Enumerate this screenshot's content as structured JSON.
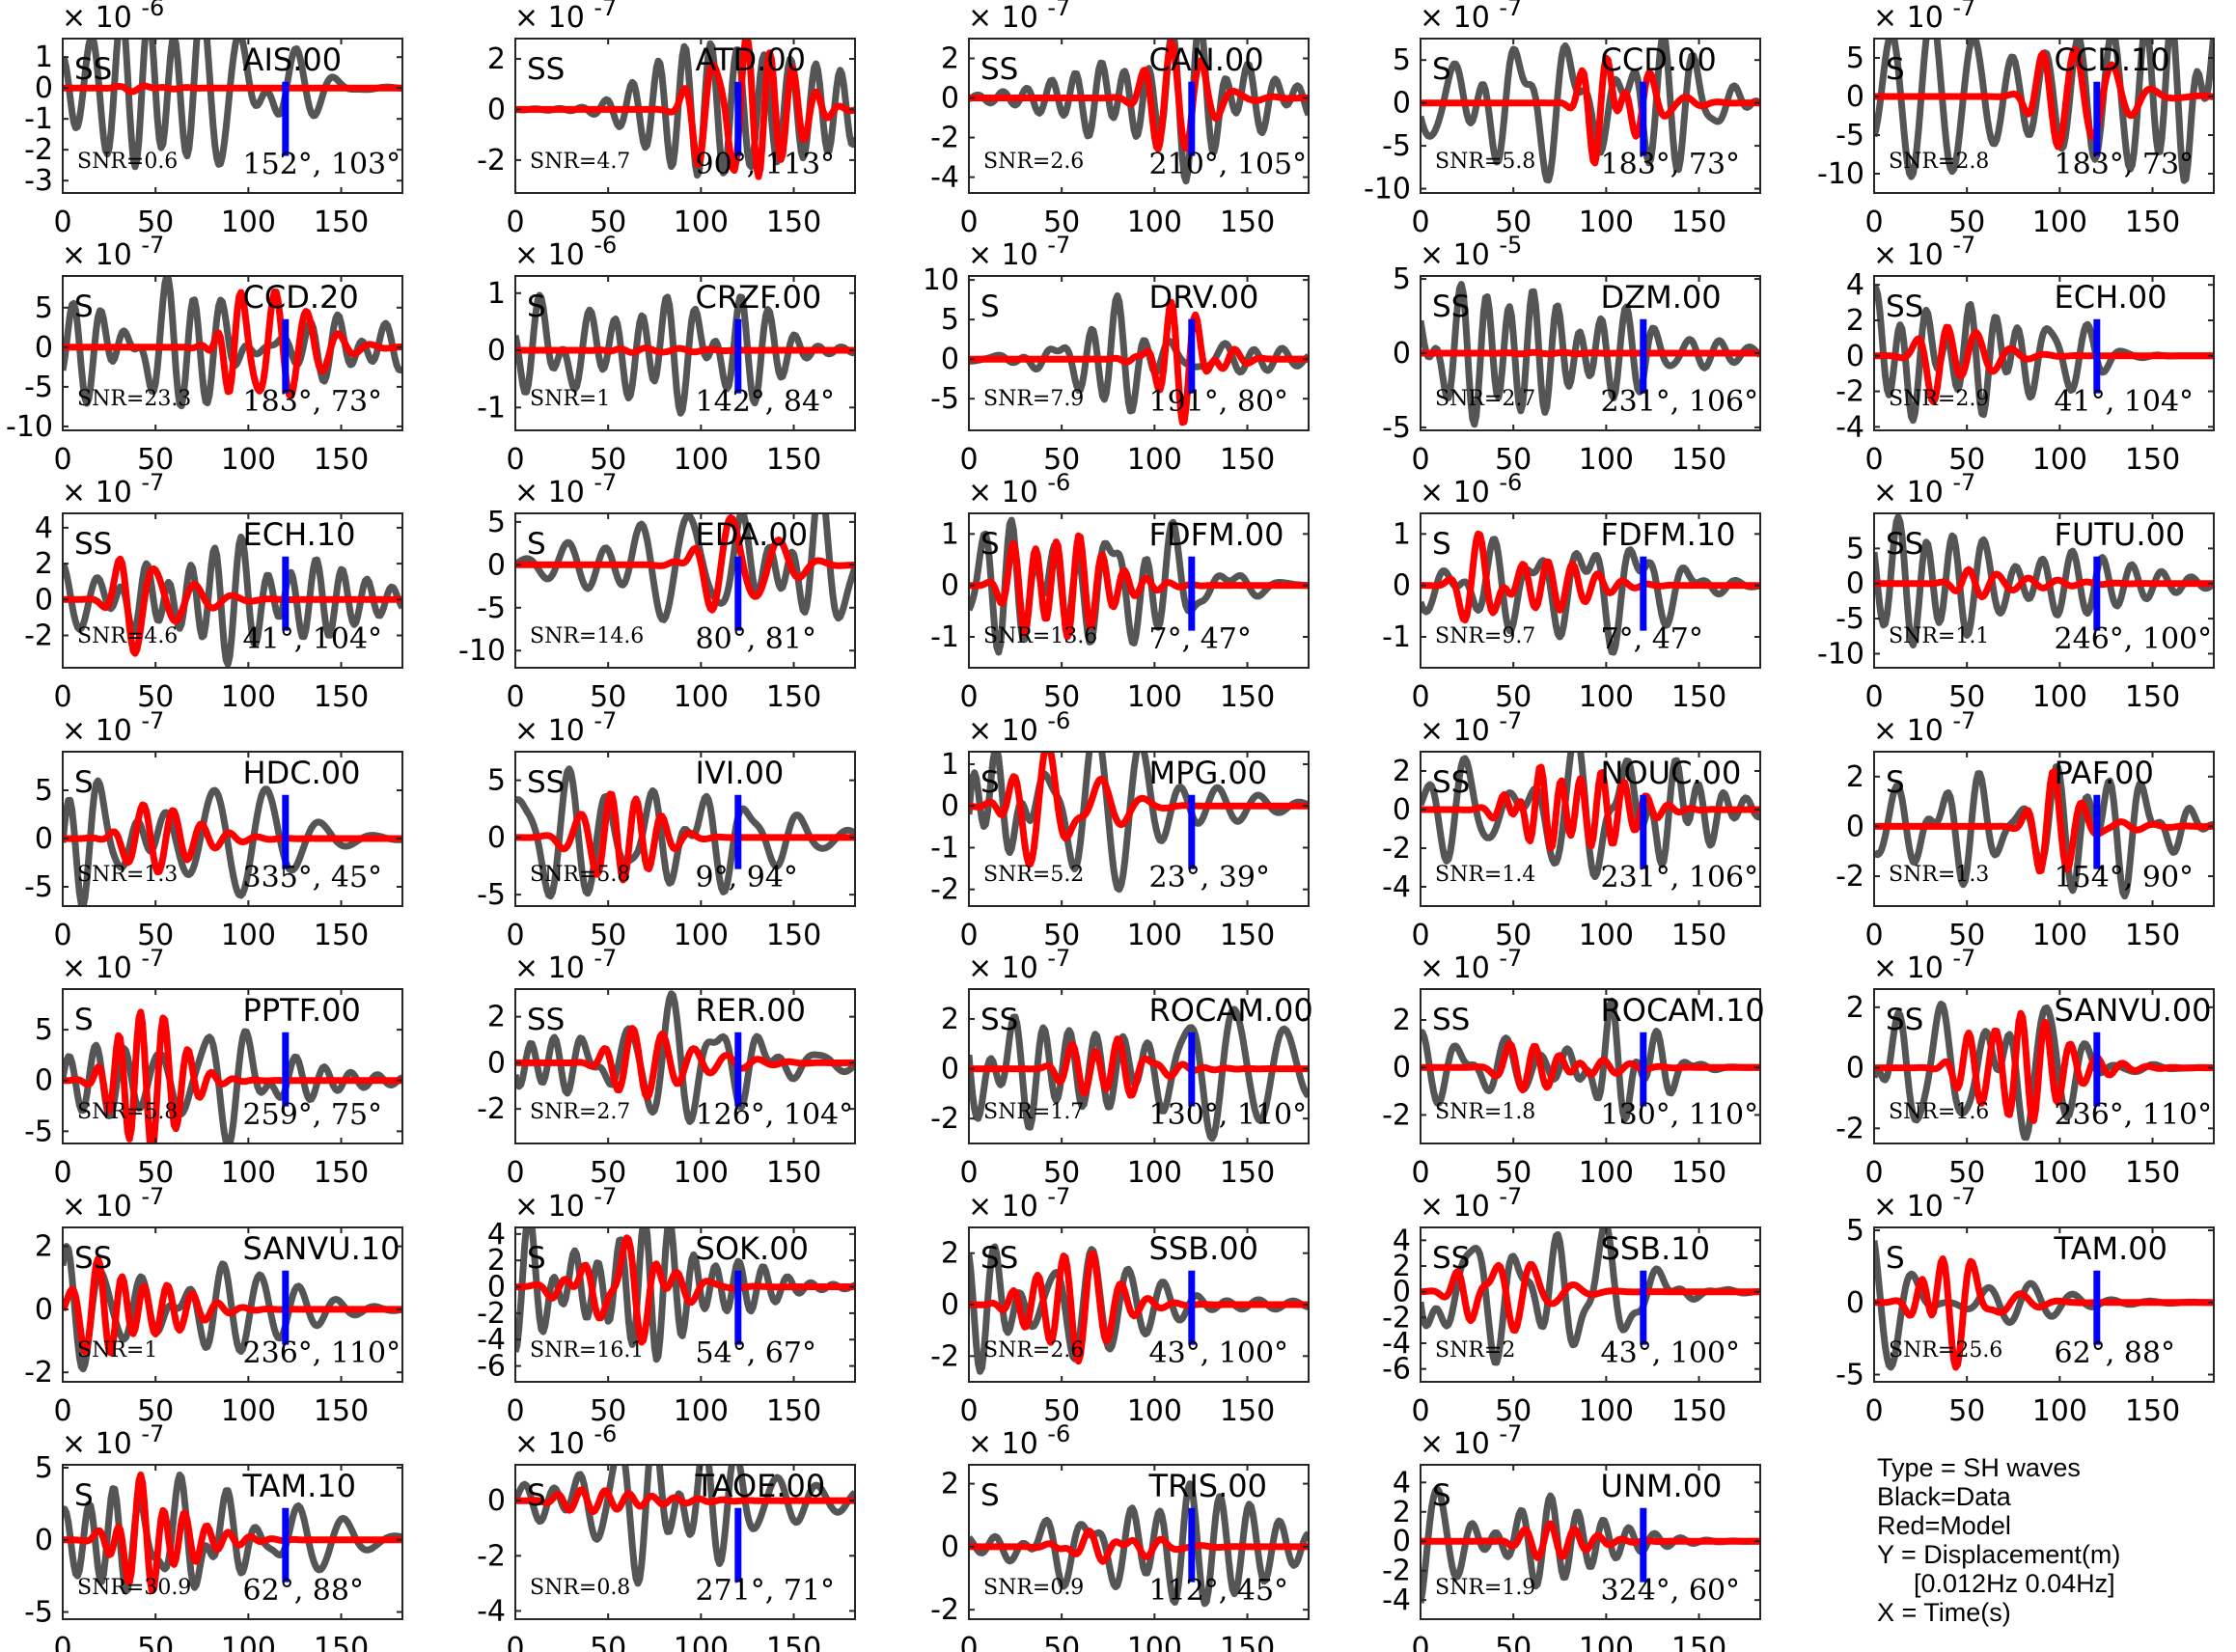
{
  "chart_data": {
    "type": "line",
    "x_ticks": [
      0,
      50,
      100,
      150
    ],
    "xlim": [
      0,
      183
    ],
    "marker_time": 120,
    "series_colors": {
      "data": "#555555",
      "model": "#ff0000",
      "marker": "#0000ff"
    },
    "legend_lines": [
      "Type = SH waves",
      "Black=Data",
      "Red=Model",
      "Y = Displacement(m)",
      "[0.012Hz 0.04Hz]",
      "X = Time(s)"
    ],
    "panels": [
      {
        "station": "AIS.00",
        "type": "SS",
        "snr": "SNR=0.6",
        "az": "152°, 103°",
        "exp_base": "× 10",
        "exp_pow": "-6",
        "ylim": [
          -3.4,
          1.6
        ],
        "yticks": [
          "1",
          "0",
          "-1",
          "-2",
          "-3"
        ],
        "ytick_vals": [
          1,
          0,
          -1,
          -2,
          -3
        ],
        "seed": 11,
        "amp_data": 2.8,
        "amp_model": 0.12,
        "pick": 50
      },
      {
        "station": "ATD.00",
        "type": "SS",
        "snr": "SNR=4.7",
        "az": "90°, 113°",
        "exp_base": "× 10",
        "exp_pow": "-7",
        "ylim": [
          -3.3,
          2.8
        ],
        "yticks": [
          "2",
          "0",
          "-2"
        ],
        "ytick_vals": [
          2,
          0,
          -2
        ],
        "seed": 12,
        "amp_data": 2.6,
        "amp_model": 2.9,
        "pick": 110
      },
      {
        "station": "CAN.00",
        "type": "SS",
        "snr": "SNR=2.6",
        "az": "210°, 105°",
        "exp_base": "× 10",
        "exp_pow": "-7",
        "ylim": [
          -4.8,
          3.0
        ],
        "yticks": [
          "2",
          "0",
          "-2",
          "-4"
        ],
        "ytick_vals": [
          2,
          0,
          -2,
          -4
        ],
        "seed": 13,
        "amp_data": 4.2,
        "amp_model": 2.8,
        "pick": 110
      },
      {
        "station": "CCD.00",
        "type": "S",
        "snr": "SNR=5.8",
        "az": "183°, 73°",
        "exp_base": "× 10",
        "exp_pow": "-7",
        "ylim": [
          -10.5,
          7.5
        ],
        "yticks": [
          "5",
          "0",
          "-5",
          "-10"
        ],
        "ytick_vals": [
          5,
          0,
          -5,
          -10
        ],
        "seed": 14,
        "amp_data": 9.0,
        "amp_model": 7.0,
        "pick": 100
      },
      {
        "station": "CCD.10",
        "type": "S",
        "snr": "SNR=2.8",
        "az": "183°, 73°",
        "exp_base": "× 10",
        "exp_pow": "-7",
        "ylim": [
          -12.5,
          7.5
        ],
        "yticks": [
          "5",
          "0",
          "-5",
          "-10"
        ],
        "ytick_vals": [
          5,
          0,
          -5,
          -10
        ],
        "seed": 15,
        "amp_data": 11.0,
        "amp_model": 6.5,
        "pick": 100
      },
      {
        "station": "CCD.20",
        "type": "S",
        "snr": "SNR=23.3",
        "az": "183°, 73°",
        "exp_base": "× 10",
        "exp_pow": "-7",
        "ylim": [
          -10.5,
          9.0
        ],
        "yticks": [
          "5",
          "0",
          "-5",
          "-10"
        ],
        "ytick_vals": [
          5,
          0,
          -5,
          -10
        ],
        "seed": 16,
        "amp_data": 9.0,
        "amp_model": 7.0,
        "pick": 100
      },
      {
        "station": "CRZF.00",
        "type": "S",
        "snr": "SNR=1",
        "az": "142°, 84°",
        "exp_base": "× 10",
        "exp_pow": "-6",
        "ylim": [
          -1.4,
          1.3
        ],
        "yticks": [
          "1",
          "0",
          "-1"
        ],
        "ytick_vals": [
          1,
          0,
          -1
        ],
        "seed": 17,
        "amp_data": 1.1,
        "amp_model": 0.04,
        "pick": 60
      },
      {
        "station": "DRV.00",
        "type": "S",
        "snr": "SNR=7.9",
        "az": "191°, 80°",
        "exp_base": "× 10",
        "exp_pow": "-7",
        "ylim": [
          -9.0,
          10.5
        ],
        "yticks": [
          "10",
          "5",
          "0",
          "-5"
        ],
        "ytick_vals": [
          10,
          5,
          0,
          -5
        ],
        "seed": 18,
        "amp_data": 8.0,
        "amp_model": 8.0,
        "pick": 100
      },
      {
        "station": "DZM.00",
        "type": "SS",
        "snr": "SNR=2.7",
        "az": "231°, 106°",
        "exp_base": "× 10",
        "exp_pow": "-5",
        "ylim": [
          -5.2,
          5.2
        ],
        "yticks": [
          "5",
          "0",
          "-5"
        ],
        "ytick_vals": [
          5,
          0,
          -5
        ],
        "seed": 19,
        "amp_data": 4.8,
        "amp_model": 0.05,
        "pick": 60
      },
      {
        "station": "ECH.00",
        "type": "SS",
        "snr": "SNR=2.9",
        "az": "41°, 104°",
        "exp_base": "× 10",
        "exp_pow": "-7",
        "ylim": [
          -4.2,
          4.5
        ],
        "yticks": [
          "4",
          "2",
          "0",
          "-2",
          "-4"
        ],
        "ytick_vals": [
          4,
          2,
          0,
          -2,
          -4
        ],
        "seed": 20,
        "amp_data": 3.8,
        "amp_model": 2.6,
        "pick": 45
      },
      {
        "station": "ECH.10",
        "type": "SS",
        "snr": "SNR=4.6",
        "az": "41°, 104°",
        "exp_base": "× 10",
        "exp_pow": "-7",
        "ylim": [
          -3.8,
          4.8
        ],
        "yticks": [
          "4",
          "2",
          "0",
          "-2"
        ],
        "ytick_vals": [
          4,
          2,
          0,
          -2
        ],
        "seed": 21,
        "amp_data": 3.6,
        "amp_model": 3.0,
        "pick": 45
      },
      {
        "station": "EDA.00",
        "type": "S",
        "snr": "SNR=14.6",
        "az": "80°, 81°",
        "exp_base": "× 10",
        "exp_pow": "-7",
        "ylim": [
          -12.0,
          6.0
        ],
        "yticks": [
          "5",
          "0",
          "-5",
          "-10"
        ],
        "ytick_vals": [
          5,
          0,
          -5,
          -10
        ],
        "seed": 22,
        "amp_data": 10.0,
        "amp_model": 5.5,
        "pick": 105
      },
      {
        "station": "FDFM.00",
        "type": "S",
        "snr": "SNR=13.6",
        "az": "7°, 47°",
        "exp_base": "× 10",
        "exp_pow": "-6",
        "ylim": [
          -1.6,
          1.4
        ],
        "yticks": [
          "1",
          "0",
          "-1"
        ],
        "ytick_vals": [
          1,
          0,
          -1
        ],
        "seed": 23,
        "amp_data": 1.3,
        "amp_model": 1.0,
        "pick": 35
      },
      {
        "station": "FDFM.10",
        "type": "S",
        "snr": "SNR=9.7",
        "az": "7°, 47°",
        "exp_base": "× 10",
        "exp_pow": "-6",
        "ylim": [
          -1.6,
          1.4
        ],
        "yticks": [
          "1",
          "0",
          "-1"
        ],
        "ytick_vals": [
          1,
          0,
          -1
        ],
        "seed": 24,
        "amp_data": 1.3,
        "amp_model": 1.0,
        "pick": 35
      },
      {
        "station": "FUTU.00",
        "type": "SS",
        "snr": "SNR=1.1",
        "az": "246°, 100°",
        "exp_base": "× 10",
        "exp_pow": "-7",
        "ylim": [
          -12.0,
          10.0
        ],
        "yticks": [
          "5",
          "0",
          "-5",
          "-10"
        ],
        "ytick_vals": [
          5,
          0,
          -5,
          -10
        ],
        "seed": 25,
        "amp_data": 9.5,
        "amp_model": 2.0,
        "pick": 60
      },
      {
        "station": "HDC.00",
        "type": "S",
        "snr": "SNR=1.3",
        "az": "335°, 45°",
        "exp_base": "× 10",
        "exp_pow": "-7",
        "ylim": [
          -7.0,
          9.0
        ],
        "yticks": [
          "5",
          "0",
          "-5"
        ],
        "ytick_vals": [
          5,
          0,
          -5
        ],
        "seed": 26,
        "amp_data": 7.0,
        "amp_model": 3.5,
        "pick": 40
      },
      {
        "station": "IVI.00",
        "type": "SS",
        "snr": "SNR=5.8",
        "az": "9°, 94°",
        "exp_base": "× 10",
        "exp_pow": "-7",
        "ylim": [
          -6.0,
          7.5
        ],
        "yticks": [
          "5",
          "0",
          "-5"
        ],
        "ytick_vals": [
          5,
          0,
          -5
        ],
        "seed": 27,
        "amp_data": 6.0,
        "amp_model": 3.8,
        "pick": 35
      },
      {
        "station": "MPG.00",
        "type": "S",
        "snr": "SNR=5.2",
        "az": "23°, 39°",
        "exp_base": "× 10",
        "exp_pow": "-6",
        "ylim": [
          -2.4,
          1.3
        ],
        "yticks": [
          "1",
          "0",
          "-1",
          "-2"
        ],
        "ytick_vals": [
          1,
          0,
          -1,
          -2
        ],
        "seed": 28,
        "amp_data": 2.0,
        "amp_model": 1.5,
        "pick": 35
      },
      {
        "station": "NOUC.00",
        "type": "SS",
        "snr": "SNR=1.4",
        "az": "231°, 106°",
        "exp_base": "× 10",
        "exp_pow": "-7",
        "ylim": [
          -5.0,
          3.0
        ],
        "yticks": [
          "2",
          "0",
          "-2",
          "-4"
        ],
        "ytick_vals": [
          2,
          0,
          -2,
          -4
        ],
        "seed": 29,
        "amp_data": 4.0,
        "amp_model": 2.2,
        "pick": 60
      },
      {
        "station": "PAF.00",
        "type": "S",
        "snr": "SNR=1.3",
        "az": "154°, 90°",
        "exp_base": "× 10",
        "exp_pow": "-7",
        "ylim": [
          -3.2,
          3.0
        ],
        "yticks": [
          "2",
          "0",
          "-2"
        ],
        "ytick_vals": [
          2,
          0,
          -2
        ],
        "seed": 30,
        "amp_data": 2.8,
        "amp_model": 2.2,
        "pick": 100
      },
      {
        "station": "PPTF.00",
        "type": "S",
        "snr": "SNR=5.8",
        "az": "259°, 75°",
        "exp_base": "× 10",
        "exp_pow": "-7",
        "ylim": [
          -6.2,
          9.0
        ],
        "yticks": [
          "5",
          "0",
          "-5"
        ],
        "ytick_vals": [
          5,
          0,
          -5
        ],
        "seed": 31,
        "amp_data": 6.5,
        "amp_model": 7.0,
        "pick": 40
      },
      {
        "station": "RER.00",
        "type": "SS",
        "snr": "SNR=2.7",
        "az": "126°, 104°",
        "exp_base": "× 10",
        "exp_pow": "-7",
        "ylim": [
          -3.5,
          3.2
        ],
        "yticks": [
          "2",
          "0",
          "-2"
        ],
        "ytick_vals": [
          2,
          0,
          -2
        ],
        "seed": 32,
        "amp_data": 3.0,
        "amp_model": 1.5,
        "pick": 60
      },
      {
        "station": "ROCAM.00",
        "type": "SS",
        "snr": "SNR=1.7",
        "az": "130°, 110°",
        "exp_base": "× 10",
        "exp_pow": "-7",
        "ylim": [
          -3.0,
          3.2
        ],
        "yticks": [
          "2",
          "0",
          "-2"
        ],
        "ytick_vals": [
          2,
          0,
          -2
        ],
        "seed": 33,
        "amp_data": 2.8,
        "amp_model": 1.2,
        "pick": 60
      },
      {
        "station": "ROCAM.10",
        "type": "SS",
        "snr": "SNR=1.8",
        "az": "130°, 110°",
        "exp_base": "× 10",
        "exp_pow": "-7",
        "ylim": [
          -3.2,
          3.3
        ],
        "yticks": [
          "2",
          "0",
          "-2"
        ],
        "ytick_vals": [
          2,
          0,
          -2
        ],
        "seed": 34,
        "amp_data": 2.8,
        "amp_model": 1.0,
        "pick": 60
      },
      {
        "station": "SANVU.00",
        "type": "SS",
        "snr": "SNR=1.6",
        "az": "236°, 110°",
        "exp_base": "× 10",
        "exp_pow": "-7",
        "ylim": [
          -2.5,
          2.6
        ],
        "yticks": [
          "2",
          "0",
          "-2"
        ],
        "ytick_vals": [
          2,
          0,
          -2
        ],
        "seed": 35,
        "amp_data": 2.3,
        "amp_model": 1.8,
        "pick": 60
      },
      {
        "station": "SANVU.10",
        "type": "SS",
        "snr": "SNR=1",
        "az": "236°, 110°",
        "exp_base": "× 10",
        "exp_pow": "-7",
        "ylim": [
          -2.3,
          2.6
        ],
        "yticks": [
          "2",
          "0",
          "-2"
        ],
        "ytick_vals": [
          2,
          0,
          -2
        ],
        "seed": 36,
        "amp_data": 2.0,
        "amp_model": 1.6,
        "pick": 20
      },
      {
        "station": "SOK.00",
        "type": "S",
        "snr": "SNR=16.1",
        "az": "54°, 67°",
        "exp_base": "× 10",
        "exp_pow": "-7",
        "ylim": [
          -7.2,
          4.5
        ],
        "yticks": [
          "4",
          "2",
          "0",
          "-2",
          "-4",
          "-6"
        ],
        "ytick_vals": [
          4,
          2,
          0,
          -2,
          -4,
          -6
        ],
        "seed": 37,
        "amp_data": 5.5,
        "amp_model": 4.2,
        "pick": 30
      },
      {
        "station": "SSB.00",
        "type": "SS",
        "snr": "SNR=2.6",
        "az": "43°, 100°",
        "exp_base": "× 10",
        "exp_pow": "-7",
        "ylim": [
          -3.0,
          3.0
        ],
        "yticks": [
          "2",
          "0",
          "-2"
        ],
        "ytick_vals": [
          2,
          0,
          -2
        ],
        "seed": 38,
        "amp_data": 2.6,
        "amp_model": 2.2,
        "pick": 35
      },
      {
        "station": "SSB.10",
        "type": "SS",
        "snr": "SNR=2",
        "az": "43°, 100°",
        "exp_base": "× 10",
        "exp_pow": "-7",
        "ylim": [
          -7.0,
          5.0
        ],
        "yticks": [
          "4",
          "2",
          "0",
          "-2",
          "-4",
          "-6"
        ],
        "ytick_vals": [
          4,
          2,
          0,
          -2,
          -4,
          -6
        ],
        "seed": 39,
        "amp_data": 5.5,
        "amp_model": 3.0,
        "pick": 35
      },
      {
        "station": "TAM.00",
        "type": "S",
        "snr": "SNR=25.6",
        "az": "62°, 88°",
        "exp_base": "× 10",
        "exp_pow": "-7",
        "ylim": [
          -5.5,
          5.2
        ],
        "yticks": [
          "5",
          "0",
          "-5"
        ],
        "ytick_vals": [
          5,
          0,
          -5
        ],
        "seed": 40,
        "amp_data": 4.5,
        "amp_model": 4.5,
        "pick": 40
      },
      {
        "station": "TAM.10",
        "type": "S",
        "snr": "SNR=30.9",
        "az": "62°, 88°",
        "exp_base": "× 10",
        "exp_pow": "-7",
        "ylim": [
          -5.5,
          5.2
        ],
        "yticks": [
          "5",
          "0",
          "-5"
        ],
        "ytick_vals": [
          5,
          0,
          -5
        ],
        "seed": 41,
        "amp_data": 4.5,
        "amp_model": 4.5,
        "pick": 40
      },
      {
        "station": "TAOE.00",
        "type": "S",
        "snr": "SNR=0.8",
        "az": "271°, 71°",
        "exp_base": "× 10",
        "exp_pow": "-6",
        "ylim": [
          -4.3,
          1.3
        ],
        "yticks": [
          "0",
          "-2",
          "-4"
        ],
        "ytick_vals": [
          0,
          -2,
          -4
        ],
        "seed": 42,
        "amp_data": 3.0,
        "amp_model": 0.4,
        "pick": 35
      },
      {
        "station": "TRIS.00",
        "type": "S",
        "snr": "SNR=0.9",
        "az": "112°, 45°",
        "exp_base": "× 10",
        "exp_pow": "-6",
        "ylim": [
          -2.3,
          2.6
        ],
        "yticks": [
          "2",
          "0",
          "-2"
        ],
        "ytick_vals": [
          2,
          0,
          -2
        ],
        "seed": 43,
        "amp_data": 2.0,
        "amp_model": 0.5,
        "pick": 60
      },
      {
        "station": "UNM.00",
        "type": "S",
        "snr": "SNR=1.9",
        "az": "324°, 60°",
        "exp_base": "× 10",
        "exp_pow": "-7",
        "ylim": [
          -5.3,
          5.2
        ],
        "yticks": [
          "4",
          "2",
          "0",
          "-2",
          "-4"
        ],
        "ytick_vals": [
          4,
          2,
          0,
          -2,
          -4
        ],
        "seed": 44,
        "amp_data": 4.2,
        "amp_model": 1.2,
        "pick": 60
      }
    ]
  }
}
